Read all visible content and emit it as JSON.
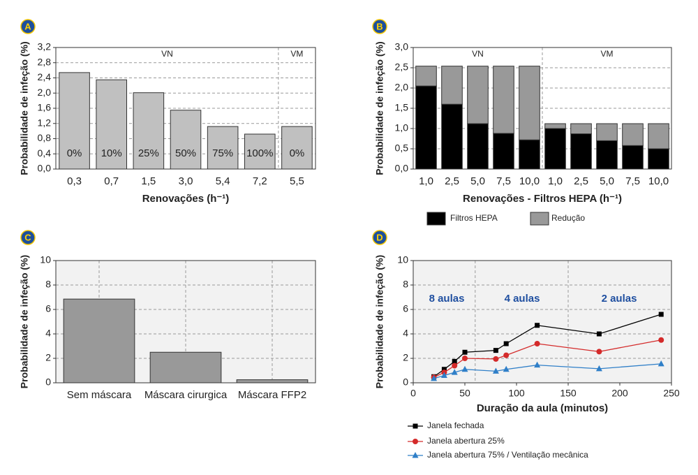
{
  "chart_data": [
    {
      "panel": "A",
      "type": "bar",
      "ylabel": "Probabilidade de infeção (%)",
      "xlabel": "Renovações (h⁻¹)",
      "categories": [
        "0,3",
        "0,7",
        "1,5",
        "3,0",
        "5,4",
        "7,2",
        "5,5"
      ],
      "values": [
        2.54,
        2.35,
        2.01,
        1.55,
        1.12,
        0.92,
        1.12
      ],
      "color": "#c0c0c0",
      "bar_labels": [
        "0%",
        "10%",
        "25%",
        "50%",
        "75%",
        "100%",
        "0%"
      ],
      "regions": [
        "VN",
        "VM"
      ],
      "ylim": [
        0,
        3.2
      ],
      "yticks": [
        {
          "value": 0,
          "label": "0,0"
        },
        {
          "value": 0.4,
          "label": "0,4"
        },
        {
          "value": 0.8,
          "label": "0,8"
        },
        {
          "value": 1.2,
          "label": "1,2"
        },
        {
          "value": 1.6,
          "label": "1,6"
        },
        {
          "value": 2.0,
          "label": "2,0"
        },
        {
          "value": 2.4,
          "label": "2,4"
        },
        {
          "value": 2.8,
          "label": "2,8"
        },
        {
          "value": 3.2,
          "label": "3,2"
        }
      ],
      "grid": "y"
    },
    {
      "panel": "B",
      "type": "stacked-bar",
      "ylabel": "Probabilidade de infeção (%)",
      "xlabel": "Renovações - Filtros HEPA (h⁻¹)",
      "categories": [
        "1,0",
        "2,5",
        "5,0",
        "7,5",
        "10,0",
        "1,0",
        "2,5",
        "5,0",
        "7,5",
        "10,0"
      ],
      "series": [
        {
          "name": "Filtros HEPA",
          "color": "#000000",
          "values": [
            2.05,
            1.6,
            1.12,
            0.88,
            0.72,
            1.0,
            0.87,
            0.7,
            0.58,
            0.5
          ]
        },
        {
          "name": "Redução",
          "color": "#999999",
          "values": [
            0.49,
            0.94,
            1.42,
            1.66,
            1.82,
            0.12,
            0.25,
            0.42,
            0.54,
            0.62
          ]
        }
      ],
      "regions": [
        "VN",
        "VM"
      ],
      "ylim": [
        0,
        3
      ],
      "yticks": [
        {
          "value": 0,
          "label": "0,0"
        },
        {
          "value": 0.5,
          "label": "0,5"
        },
        {
          "value": 1,
          "label": "1,0"
        },
        {
          "value": 1.5,
          "label": "1,5"
        },
        {
          "value": 2,
          "label": "2,0"
        },
        {
          "value": 2.5,
          "label": "2,5"
        },
        {
          "value": 3,
          "label": "3,0"
        }
      ],
      "grid": "y"
    },
    {
      "panel": "C",
      "type": "bar",
      "ylabel": "Probabilidade de infeção (%)",
      "categories": [
        "Sem máscara",
        "Máscara cirurgica",
        "Máscara FFP2"
      ],
      "values": [
        6.85,
        2.5,
        0.25
      ],
      "color": "#999999",
      "ylim": [
        0,
        10
      ],
      "yticks": [
        0,
        2,
        4,
        6,
        8,
        10
      ],
      "grid": "both"
    },
    {
      "panel": "D",
      "type": "line",
      "ylabel": "Probabilidade de infeção (%)",
      "xlabel": "Duração da aula (minutos)",
      "x": [
        20,
        30,
        40,
        50,
        80,
        90,
        120,
        180,
        240
      ],
      "series": [
        {
          "name": "Janela fechada",
          "color": "#000000",
          "marker": "square",
          "values": [
            0.5,
            1.1,
            1.75,
            2.5,
            2.65,
            3.2,
            4.7,
            4.0,
            5.6
          ]
        },
        {
          "name": "Janela abertura 25%",
          "color": "#d42a2a",
          "marker": "circle",
          "values": [
            0.45,
            0.85,
            1.4,
            2.0,
            1.95,
            2.25,
            3.2,
            2.55,
            3.5
          ]
        },
        {
          "name": "Janela abertura 75% / Ventilação mecânica",
          "color": "#2f7fc8",
          "marker": "triangle",
          "values": [
            0.35,
            0.6,
            0.85,
            1.1,
            0.95,
            1.1,
            1.45,
            1.15,
            1.55
          ]
        }
      ],
      "annotations": [
        "8 aulas",
        "4 aulas",
        "2 aulas"
      ],
      "dividers": [
        60,
        150
      ],
      "xlim": [
        0,
        250
      ],
      "xticks": [
        0,
        50,
        100,
        150,
        200,
        250
      ],
      "ylim": [
        0,
        10
      ],
      "yticks": [
        0,
        2,
        4,
        6,
        8,
        10
      ],
      "grid": "y"
    }
  ]
}
